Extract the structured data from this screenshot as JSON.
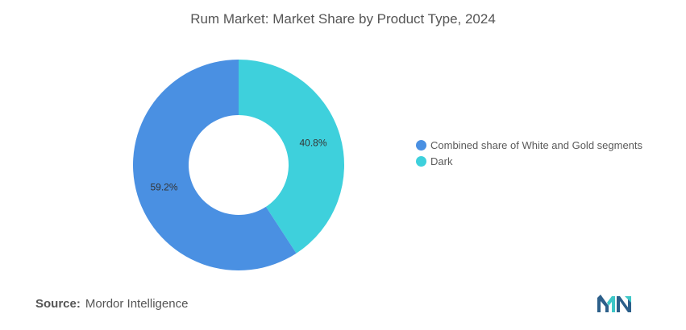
{
  "chart_data": {
    "type": "pie",
    "title": "Rum Market: Market Share by Product Type, 2024",
    "donut": true,
    "categories": [
      "Combined share of White and Gold segments",
      "Dark"
    ],
    "values": [
      59.2,
      40.8
    ],
    "data_labels": [
      "59.2%",
      "40.8%"
    ],
    "colors": [
      "#4a90e2",
      "#3ed0dc"
    ],
    "legend_position": "right"
  },
  "source": {
    "label": "Source:",
    "text": "Mordor Intelligence"
  },
  "logo": {
    "icon": "mordor-intelligence-logo",
    "colors": [
      "#2c5f8a",
      "#3ec7c7"
    ]
  }
}
